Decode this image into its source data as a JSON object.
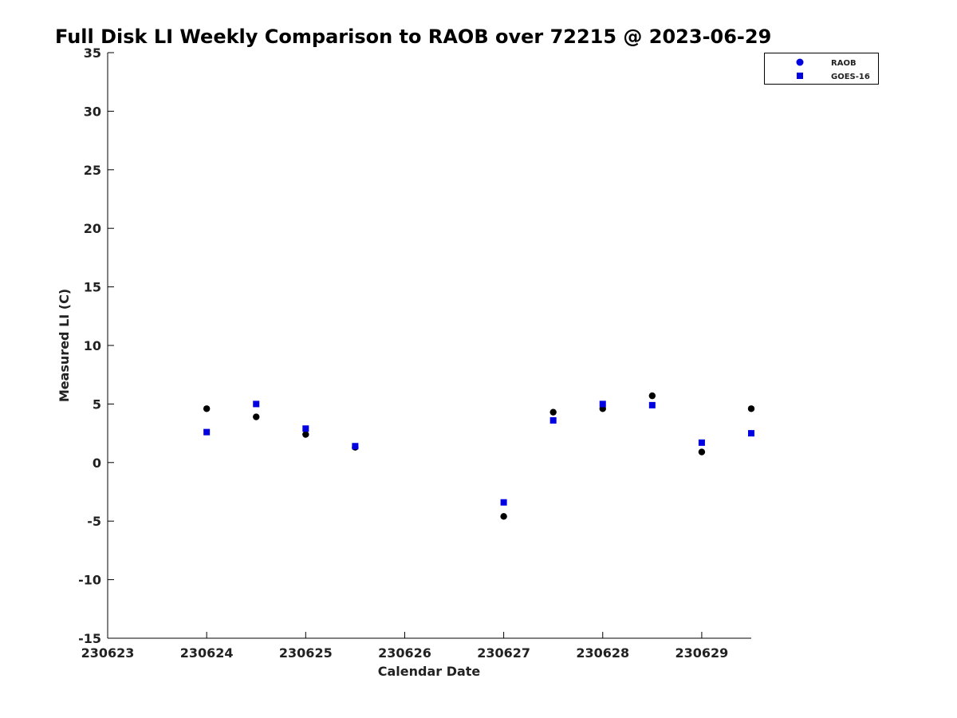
{
  "chart_data": {
    "type": "scatter",
    "title": "Full Disk LI Weekly Comparison to RAOB over 72215 @ 2023-06-29",
    "xlabel": "Calendar Date",
    "ylabel": "Measured LI (C)",
    "xlim": [
      230623,
      230629.5
    ],
    "ylim": [
      -15,
      35
    ],
    "xticks": [
      "230623",
      "230624",
      "230625",
      "230626",
      "230627",
      "230628",
      "230629"
    ],
    "yticks": [
      "35",
      "30",
      "25",
      "20",
      "15",
      "10",
      "5",
      "0",
      "-5",
      "-10",
      "-15"
    ],
    "grid": false,
    "legend_position": "top-right",
    "series": [
      {
        "name": "RAOB",
        "marker": "circle",
        "color": "#000000",
        "legend_color": "#0000e0",
        "points": [
          {
            "x": 230624.0,
            "y": 4.6
          },
          {
            "x": 230624.5,
            "y": 3.9
          },
          {
            "x": 230625.0,
            "y": 2.4
          },
          {
            "x": 230625.5,
            "y": 1.3
          },
          {
            "x": 230627.0,
            "y": -4.6
          },
          {
            "x": 230627.5,
            "y": 4.3
          },
          {
            "x": 230628.0,
            "y": 4.6
          },
          {
            "x": 230628.5,
            "y": 5.7
          },
          {
            "x": 230629.0,
            "y": 0.9
          },
          {
            "x": 230629.5,
            "y": 4.6
          }
        ]
      },
      {
        "name": "GOES-16",
        "marker": "square",
        "color": "#0000e0",
        "legend_color": "#0000e0",
        "points": [
          {
            "x": 230624.0,
            "y": 2.6
          },
          {
            "x": 230624.5,
            "y": 5.0
          },
          {
            "x": 230625.0,
            "y": 2.9
          },
          {
            "x": 230625.5,
            "y": 1.4
          },
          {
            "x": 230627.0,
            "y": -3.4
          },
          {
            "x": 230627.5,
            "y": 3.6
          },
          {
            "x": 230628.0,
            "y": 5.0
          },
          {
            "x": 230628.5,
            "y": 4.9
          },
          {
            "x": 230629.0,
            "y": 1.7
          },
          {
            "x": 230629.5,
            "y": 2.5
          }
        ]
      }
    ]
  }
}
